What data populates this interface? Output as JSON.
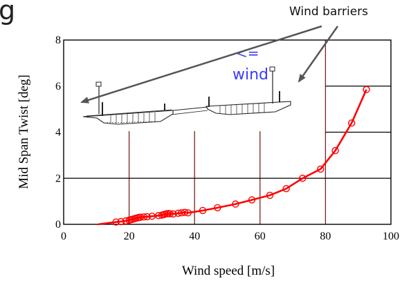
{
  "chart_data": {
    "type": "line",
    "xlabel": "Wind speed [m/s]",
    "ylabel": "Mid Span Twist [deg]",
    "xlim": [
      0,
      100
    ],
    "ylim": [
      0,
      8
    ],
    "xticks": [
      0,
      20,
      40,
      60,
      80,
      100
    ],
    "yticks": [
      0,
      2,
      4,
      6,
      8
    ],
    "grid": "partial",
    "series": [
      {
        "color": "#ff0000",
        "marker": "circle",
        "points": [
          [
            10.5,
            0.0
          ],
          [
            16.0,
            0.1
          ],
          [
            17.5,
            0.12
          ],
          [
            19.0,
            0.15
          ],
          [
            20.0,
            0.18
          ],
          [
            20.5,
            0.2
          ],
          [
            21.0,
            0.22
          ],
          [
            21.5,
            0.24
          ],
          [
            22.0,
            0.26
          ],
          [
            22.5,
            0.28
          ],
          [
            23.0,
            0.3
          ],
          [
            23.5,
            0.31
          ],
          [
            24.5,
            0.32
          ],
          [
            25.5,
            0.33
          ],
          [
            27.0,
            0.35
          ],
          [
            29.0,
            0.38
          ],
          [
            30.0,
            0.4
          ],
          [
            30.5,
            0.42
          ],
          [
            31.0,
            0.44
          ],
          [
            31.5,
            0.46
          ],
          [
            32.0,
            0.47
          ],
          [
            32.5,
            0.46
          ],
          [
            33.5,
            0.45
          ],
          [
            35.0,
            0.48
          ],
          [
            36.0,
            0.5
          ],
          [
            37.0,
            0.52
          ],
          [
            38.0,
            0.5
          ],
          [
            42.5,
            0.6
          ],
          [
            47.0,
            0.72
          ],
          [
            52.5,
            0.88
          ],
          [
            57.5,
            1.06
          ],
          [
            63.0,
            1.26
          ],
          [
            68.0,
            1.55
          ],
          [
            73.0,
            2.0
          ],
          [
            78.5,
            2.4
          ],
          [
            83.0,
            3.2
          ],
          [
            88.0,
            4.4
          ],
          [
            92.5,
            5.85
          ]
        ]
      }
    ]
  },
  "annotations": {
    "heading_partial": "g",
    "callout_label": "Wind barriers",
    "wind_arrow_text": "<=",
    "wind_text": "wind"
  },
  "colors": {
    "series": "#ff0000",
    "axes": "#000000",
    "vertical_grid": "#7b2020",
    "annotation_text": "#3a3aff",
    "callout_arrow": "#555555"
  }
}
